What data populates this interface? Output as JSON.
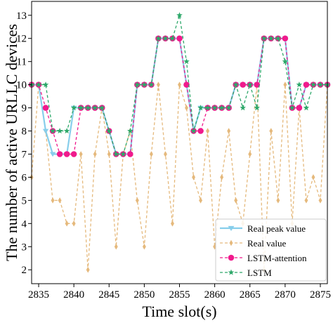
{
  "chart_data": {
    "type": "line",
    "title": "",
    "xlabel": "Time slot(s)",
    "ylabel": "The number of active URLLC devices",
    "xlim": [
      2834,
      2876
    ],
    "ylim": [
      1.4,
      13.6
    ],
    "xticks": [
      2835,
      2840,
      2845,
      2850,
      2855,
      2860,
      2865,
      2870,
      2875
    ],
    "yticks": [
      2,
      3,
      4,
      5,
      6,
      7,
      8,
      9,
      10,
      11,
      12,
      13
    ],
    "grid": false,
    "legend_position": "bottom-right",
    "x": [
      2834,
      2835,
      2836,
      2837,
      2838,
      2839,
      2840,
      2841,
      2842,
      2843,
      2844,
      2845,
      2846,
      2847,
      2848,
      2849,
      2850,
      2851,
      2852,
      2853,
      2854,
      2855,
      2856,
      2857,
      2858,
      2859,
      2860,
      2861,
      2862,
      2863,
      2864,
      2865,
      2866,
      2867,
      2868,
      2869,
      2870,
      2871,
      2872,
      2873,
      2874,
      2875,
      2876
    ],
    "series": [
      {
        "name": "Real peak value",
        "color": "#87CEEB",
        "style": "solid",
        "marker": "triangle-down",
        "values": [
          10,
          10,
          8,
          7,
          7,
          7,
          9,
          9,
          9,
          9,
          9,
          8,
          7,
          7,
          7,
          10,
          10,
          10,
          12,
          12,
          12,
          12,
          10,
          8,
          9,
          9,
          9,
          9,
          9,
          10,
          10,
          10,
          10,
          12,
          12,
          12,
          12,
          9,
          9,
          10,
          10,
          10,
          10
        ]
      },
      {
        "name": "Real value",
        "color": "#E5B97C",
        "style": "dashed",
        "marker": "diamond",
        "values": [
          6,
          10,
          8,
          5,
          5,
          4,
          4,
          7,
          2,
          7,
          9,
          7,
          3,
          7,
          8,
          5,
          3,
          7,
          10,
          7,
          4,
          10,
          9,
          6,
          5,
          8,
          3,
          6,
          8,
          5,
          4,
          7,
          10,
          2,
          8,
          5,
          10,
          4,
          9,
          5,
          6,
          5,
          10
        ]
      },
      {
        "name": "LSTM-attention",
        "color": "#F01A8C",
        "style": "dashed",
        "marker": "circle",
        "values": [
          10,
          10,
          9,
          8,
          7,
          7,
          7,
          9,
          9,
          9,
          9,
          8,
          7,
          7,
          7,
          10,
          10,
          10,
          12,
          12,
          12,
          12,
          10,
          8,
          8,
          9,
          9,
          9,
          9,
          10,
          10,
          10,
          10,
          12,
          12,
          12,
          12,
          9,
          9,
          10,
          10,
          10,
          10
        ]
      },
      {
        "name": "LSTM",
        "color": "#2EA86A",
        "style": "dashed",
        "marker": "star",
        "values": [
          10,
          10,
          10,
          8,
          8,
          8,
          9,
          9,
          9,
          9,
          9,
          8,
          7,
          7,
          8,
          10,
          10,
          10,
          12,
          12,
          12,
          13,
          11,
          8,
          9,
          9,
          9,
          9,
          9,
          10,
          9,
          10,
          9,
          12,
          12,
          12,
          11,
          9,
          10,
          9,
          10,
          10,
          10
        ]
      }
    ]
  }
}
